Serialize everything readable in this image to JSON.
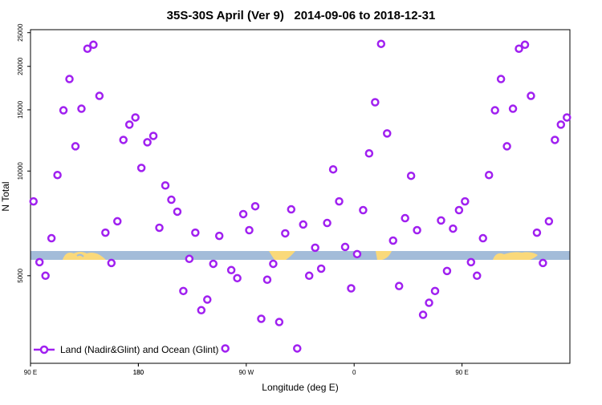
{
  "chart_data": {
    "type": "scatter",
    "title": "35S-30S April (Ver 9)   2014-09-06 to 2018-12-31",
    "x_label": "Longitude (deg E)",
    "y_label": "N Total",
    "x": [
      92.5,
      97.5,
      102.5,
      107.5,
      112.5,
      117.5,
      122.5,
      127.5,
      132.5,
      137.5,
      142.5,
      147.5,
      152.5,
      157.5,
      162.5,
      167.5,
      172.5,
      177.5,
      182.5,
      187.5,
      192.5,
      197.5,
      202.5,
      207.5,
      212.5,
      217.5,
      222.5,
      227.5,
      232.5,
      237.5,
      242.5,
      247.5,
      252.5,
      257.5,
      262.5,
      267.5,
      272.5,
      277.5,
      282.5,
      287.5,
      292.5,
      297.5,
      302.5,
      307.5,
      312.5,
      317.5,
      322.5,
      327.5,
      332.5,
      337.5,
      342.5,
      347.5,
      352.5,
      357.5,
      362.5,
      367.5,
      372.5,
      377.5,
      382.5,
      387.5,
      392.5,
      397.5,
      402.5,
      407.5,
      412.5,
      417.5,
      422.5,
      427.5,
      432.5,
      437.5,
      442.5,
      447.5,
      452.5,
      457.5,
      462.5,
      467.5,
      472.5,
      477.5,
      482.5,
      487.5,
      492.5,
      497.5,
      502.5,
      507.5,
      512.5,
      517.5,
      522.5,
      527.5,
      532.5,
      537.5
    ],
    "series": [
      {
        "name": "Land (Nadir&Glint) and Ocean (Glint)",
        "color": "#a020f0",
        "values": [
          8180,
          5470,
          5000,
          6410,
          9740,
          14950,
          18390,
          11780,
          15110,
          22480,
          23080,
          16450,
          6650,
          5440,
          7170,
          12290,
          13600,
          14260,
          10210,
          12100,
          12620,
          6870,
          9090,
          8270,
          7640,
          4520,
          5590,
          6650,
          3980,
          4270,
          5410,
          6510,
          3090,
          5190,
          4920,
          7520,
          6760,
          7920,
          3760,
          4870,
          5410,
          3680,
          6620,
          7760,
          3090,
          7020,
          5000,
          6020,
          5240,
          7090,
          10110,
          8180,
          6050,
          4600,
          5770,
          7720,
          11240,
          15770,
          23210,
          12830,
          6310,
          4670,
          7320,
          9690,
          6760,
          3860,
          4180,
          4520,
          7210,
          5160,
          6830,
          7720,
          8180,
          5470,
          5000,
          6410,
          9740,
          14950,
          18390,
          11780,
          15110,
          22480,
          23080,
          16450,
          6650,
          5440,
          7170,
          12290,
          13600,
          14260
        ]
      }
    ],
    "xlim": [
      90,
      540
    ],
    "xticks": [
      {
        "value": 90,
        "label": "90 E"
      },
      180,
      {
        "value": 270,
        "label": "90 W"
      },
      {
        "value": 360,
        "label": "0"
      },
      {
        "value": 450,
        "label": "90 E"
      },
      180
    ],
    "ylim": [
      2800,
      25500
    ],
    "yticks": [
      5000,
      10000,
      15000,
      20000,
      25000
    ],
    "log_y": true,
    "legend": "bottom-left"
  }
}
